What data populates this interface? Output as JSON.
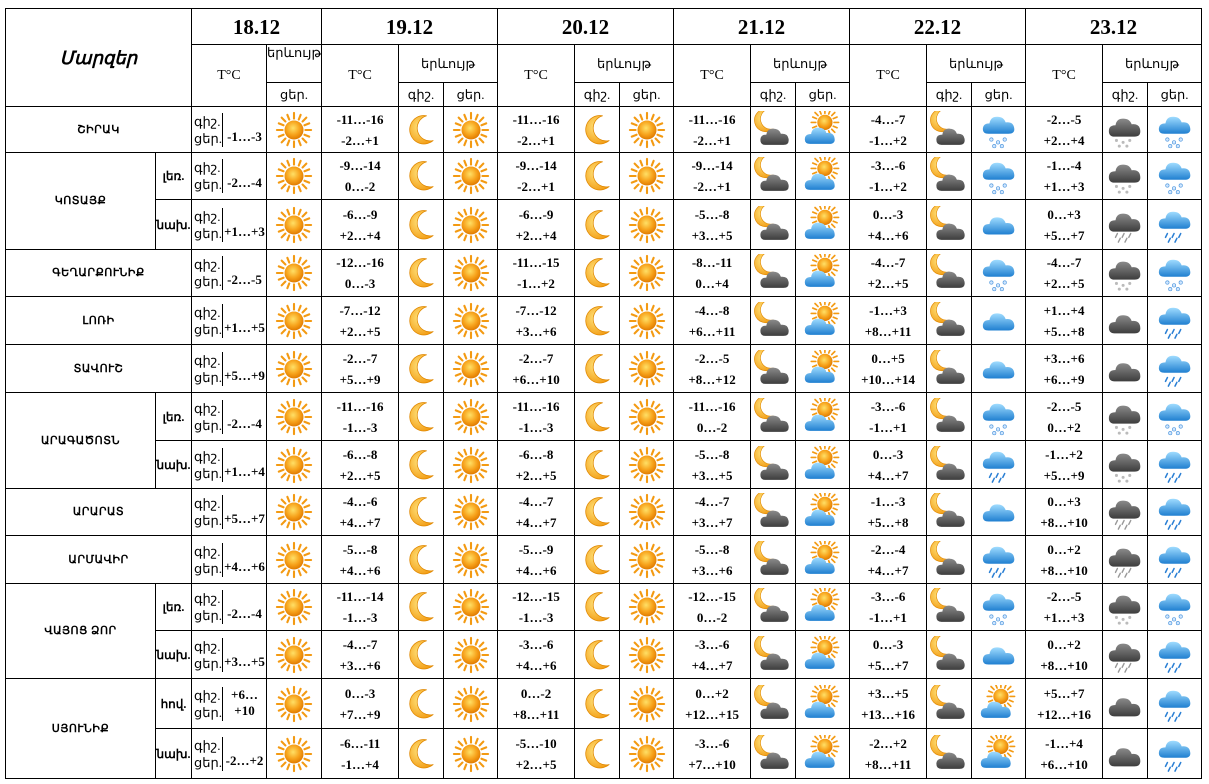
{
  "header": {
    "title": "Մարզեր",
    "dates": [
      "18.12",
      "19.12",
      "20.12",
      "21.12",
      "22.12",
      "23.12"
    ],
    "temp_label": "T°C",
    "phen_label": "երևույթ",
    "phen_label_short": "երևույթ",
    "night_label": "գիշ.",
    "day_label": "ցեր."
  },
  "rows": [
    {
      "region": "ՇԻՐԱԿ",
      "sub": "",
      "label": "գիշ.\nցեր.",
      "t18": "-1…-3",
      "days": [
        {
          "t": "-11…-16\n-2…+1",
          "i1": "moon",
          "i2": "sun"
        },
        {
          "t": "-11…-16\n-2…+1",
          "i1": "moon",
          "i2": "sun"
        },
        {
          "t": "-11…-16\n-2…+1",
          "i1": "moon-cloud",
          "i2": "sun-cloud"
        },
        {
          "t": "-4…-7\n-1…+2",
          "i1": "moon-cloud",
          "i2": "snow"
        },
        {
          "t": "-2…-5\n+2…+4",
          "i1": "snow-cloud",
          "i2": "snow"
        }
      ]
    },
    {
      "region": "ԿՈՏԱՅՔ",
      "sub": "լեռ.",
      "label": "գիշ.\nցեր.",
      "t18": "-2…-4",
      "days": [
        {
          "t": "-9…-14\n0…-2",
          "i1": "moon",
          "i2": "sun"
        },
        {
          "t": "-9…-14\n-2…+1",
          "i1": "moon",
          "i2": "sun"
        },
        {
          "t": "-9…-14\n-2…+1",
          "i1": "moon-cloud",
          "i2": "sun-cloud"
        },
        {
          "t": "-3…-6\n-1…+2",
          "i1": "moon-cloud",
          "i2": "snow"
        },
        {
          "t": "-1…-4\n+1…+3",
          "i1": "snow-cloud",
          "i2": "snow"
        }
      ]
    },
    {
      "region": "",
      "sub": "նախ.",
      "label": "գիշ.\nցեր.",
      "t18": "+1…+3",
      "days": [
        {
          "t": "-6…-9\n+2…+4",
          "i1": "moon",
          "i2": "sun"
        },
        {
          "t": "-6…-9\n+2…+4",
          "i1": "moon",
          "i2": "sun"
        },
        {
          "t": "-5…-8\n+3…+5",
          "i1": "moon-cloud",
          "i2": "sun-cloud"
        },
        {
          "t": "0…-3\n+4…+6",
          "i1": "moon-cloud",
          "i2": "cloud"
        },
        {
          "t": "0…+3\n+5…+7",
          "i1": "rain-cloud",
          "i2": "rain"
        }
      ]
    },
    {
      "region": "ԳԵՂԱՐՔՈՒՆԻՔ",
      "sub": "",
      "label": "գիշ.\nցեր.",
      "t18": "-2…-5",
      "days": [
        {
          "t": "-12…-16\n0…-3",
          "i1": "moon",
          "i2": "sun"
        },
        {
          "t": "-11…-15\n-1…+2",
          "i1": "moon",
          "i2": "sun"
        },
        {
          "t": "-8…-11\n0…+4",
          "i1": "moon-cloud",
          "i2": "sun-cloud"
        },
        {
          "t": "-4…-7\n+2…+5",
          "i1": "moon-cloud",
          "i2": "snow"
        },
        {
          "t": "-4…-7\n+2…+5",
          "i1": "snow-cloud",
          "i2": "snow"
        }
      ]
    },
    {
      "region": "ԼՈՌԻ",
      "sub": "",
      "label": "գիշ.\nցեր.",
      "t18": "+1…+5",
      "days": [
        {
          "t": "-7…-12\n+2…+5",
          "i1": "moon",
          "i2": "sun"
        },
        {
          "t": "-7…-12\n+3…+6",
          "i1": "moon",
          "i2": "sun"
        },
        {
          "t": "-4…-8\n+6…+11",
          "i1": "moon-cloud",
          "i2": "sun-cloud"
        },
        {
          "t": "-1…+3\n+8…+11",
          "i1": "moon-cloud",
          "i2": "cloud"
        },
        {
          "t": "+1…+4\n+5…+8",
          "i1": "dark-cloud",
          "i2": "rain"
        }
      ]
    },
    {
      "region": "ՏԱՎՈՒՇ",
      "sub": "",
      "label": "գիշ.\nցեր.",
      "t18": "+5…+9",
      "days": [
        {
          "t": "-2…-7\n+5…+9",
          "i1": "moon",
          "i2": "sun"
        },
        {
          "t": "-2…-7\n+6…+10",
          "i1": "moon",
          "i2": "sun"
        },
        {
          "t": "-2…-5\n+8…+12",
          "i1": "moon-cloud",
          "i2": "sun-cloud"
        },
        {
          "t": "0…+5\n+10…+14",
          "i1": "moon-cloud",
          "i2": "cloud"
        },
        {
          "t": "+3…+6\n+6…+9",
          "i1": "dark-cloud",
          "i2": "rain"
        }
      ]
    },
    {
      "region": "ԱՐԱԳԱԾՈՏՆ",
      "sub": "լեռ.",
      "label": "գիշ.\nցեր.",
      "t18": "-2…-4",
      "days": [
        {
          "t": "-11…-16\n-1…-3",
          "i1": "moon",
          "i2": "sun"
        },
        {
          "t": "-11…-16\n-1…-3",
          "i1": "moon",
          "i2": "sun"
        },
        {
          "t": "-11…-16\n0…-2",
          "i1": "moon-cloud",
          "i2": "sun-cloud"
        },
        {
          "t": "-3…-6\n-1…+1",
          "i1": "moon-cloud",
          "i2": "snow"
        },
        {
          "t": "-2…-5\n0…+2",
          "i1": "snow-cloud",
          "i2": "snow"
        }
      ]
    },
    {
      "region": "",
      "sub": "նախ.",
      "label": "գիշ.\nցեր.",
      "t18": "+1…+4",
      "days": [
        {
          "t": "-6…-8\n+2…+5",
          "i1": "moon",
          "i2": "sun"
        },
        {
          "t": "-6…-8\n+2…+5",
          "i1": "moon",
          "i2": "sun"
        },
        {
          "t": "-5…-8\n+3…+5",
          "i1": "moon-cloud",
          "i2": "sun-cloud"
        },
        {
          "t": "0…-3\n+4…+7",
          "i1": "moon-cloud",
          "i2": "rain"
        },
        {
          "t": "-1…+2\n+5…+9",
          "i1": "snow-cloud",
          "i2": "rain"
        }
      ]
    },
    {
      "region": "ԱՐԱՐԱՏ",
      "sub": "",
      "label": "գիշ.\nցեր.",
      "t18": "+5…+7",
      "days": [
        {
          "t": "-4…-6\n+4…+7",
          "i1": "moon",
          "i2": "sun"
        },
        {
          "t": "-4…-7\n+4…+7",
          "i1": "moon",
          "i2": "sun"
        },
        {
          "t": "-4…-7\n+3…+7",
          "i1": "moon-cloud",
          "i2": "sun-cloud"
        },
        {
          "t": "-1…-3\n+5…+8",
          "i1": "moon-cloud",
          "i2": "cloud"
        },
        {
          "t": "0…+3\n+8…+10",
          "i1": "rain-cloud",
          "i2": "rain"
        }
      ]
    },
    {
      "region": "ԱՐՄԱՎԻՐ",
      "sub": "",
      "label": "գիշ.\nցեր.",
      "t18": "+4…+6",
      "days": [
        {
          "t": "-5…-8\n+4…+6",
          "i1": "moon",
          "i2": "sun"
        },
        {
          "t": "-5…-9\n+4…+6",
          "i1": "moon",
          "i2": "sun"
        },
        {
          "t": "-5…-8\n+3…+6",
          "i1": "moon-cloud",
          "i2": "sun-cloud"
        },
        {
          "t": "-2…-4\n+4…+7",
          "i1": "moon-cloud",
          "i2": "rain"
        },
        {
          "t": "0…+2\n+8…+10",
          "i1": "rain-cloud",
          "i2": "rain"
        }
      ]
    },
    {
      "region": "ՎԱՅՈՑ ՁՈՐ",
      "sub": "լեռ.",
      "label": "գիշ.\nցեր.",
      "t18": "-2…-4",
      "days": [
        {
          "t": "-11…-14\n-1…-3",
          "i1": "moon",
          "i2": "sun"
        },
        {
          "t": "-12…-15\n-1…-3",
          "i1": "moon",
          "i2": "sun"
        },
        {
          "t": "-12…-15\n0…-2",
          "i1": "moon-cloud",
          "i2": "sun-cloud"
        },
        {
          "t": "-3…-6\n-1…+1",
          "i1": "moon-cloud",
          "i2": "snow"
        },
        {
          "t": "-2…-5\n+1…+3",
          "i1": "snow-cloud",
          "i2": "snow"
        }
      ]
    },
    {
      "region": "",
      "sub": "նախ.",
      "label": "գիշ.\nցեր.",
      "t18": "+3…+5",
      "days": [
        {
          "t": "-4…-7\n+3…+6",
          "i1": "moon",
          "i2": "sun"
        },
        {
          "t": "-3…-6\n+4…+6",
          "i1": "moon",
          "i2": "sun"
        },
        {
          "t": "-3…-6\n+4…+7",
          "i1": "moon-cloud",
          "i2": "sun-cloud"
        },
        {
          "t": "0…-3\n+5…+7",
          "i1": "moon-cloud",
          "i2": "cloud"
        },
        {
          "t": "0…+2\n+8…+10",
          "i1": "rain-cloud",
          "i2": "rain"
        }
      ]
    },
    {
      "region": "ՍՅՈՒՆԻՔ",
      "sub": "հով.",
      "label": "գիշ.\nցեր.",
      "t18": "+6…+10",
      "days": [
        {
          "t": "0…-3\n+7…+9",
          "i1": "moon",
          "i2": "sun"
        },
        {
          "t": "0…-2\n+8…+11",
          "i1": "moon",
          "i2": "sun"
        },
        {
          "t": "0…+2\n+12…+15",
          "i1": "moon-cloud",
          "i2": "sun-cloud"
        },
        {
          "t": "+3…+5\n+13…+16",
          "i1": "moon-cloud",
          "i2": "sun-cloud"
        },
        {
          "t": "+5…+7\n+12…+16",
          "i1": "dark-cloud",
          "i2": "rain"
        }
      ]
    },
    {
      "region": "",
      "sub": "նախ.",
      "label": "գիշ.\nցեր.",
      "t18": "-2…+2",
      "days": [
        {
          "t": "-6…-11\n-1…+4",
          "i1": "moon",
          "i2": "sun"
        },
        {
          "t": "-5…-10\n+2…+5",
          "i1": "moon",
          "i2": "sun"
        },
        {
          "t": "-3…-6\n+7…+10",
          "i1": "moon-cloud",
          "i2": "sun-cloud"
        },
        {
          "t": "-2…+2\n+8…+11",
          "i1": "moon-cloud",
          "i2": "sun-cloud"
        },
        {
          "t": "-1…+4\n+6…+10",
          "i1": "dark-cloud",
          "i2": "rain"
        }
      ]
    }
  ]
}
